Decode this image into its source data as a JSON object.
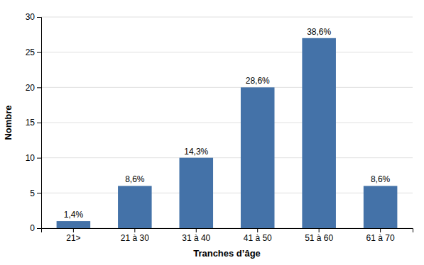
{
  "chart_data": {
    "type": "bar",
    "categories": [
      "21>",
      "21 à 30",
      "31 à 40",
      "41 à 50",
      "51 à 60",
      "61 à 70"
    ],
    "values": [
      1,
      6,
      10,
      20,
      27,
      6
    ],
    "value_labels": [
      "1,4%",
      "8,6%",
      "14,3%",
      "28,6%",
      "38,6%",
      "8,6%"
    ],
    "data_labels": true,
    "color": "#4472a8",
    "x_label": "Tranches d’âge",
    "y_label": "Nombre",
    "ylim": [
      0,
      30
    ],
    "yticks": [
      0,
      5,
      10,
      15,
      20,
      25,
      30
    ],
    "grid": true
  }
}
